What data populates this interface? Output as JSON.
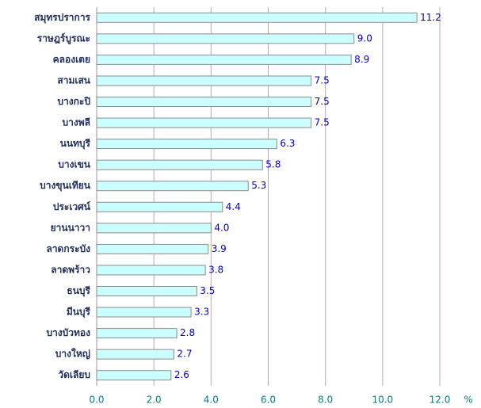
{
  "chart_data": {
    "type": "bar",
    "orientation": "horizontal",
    "categories": [
      "สมุทรปราการ",
      "ราษฎร์บูรณะ",
      "คลองเตย",
      "สามเสน",
      "บางกะปิ",
      "บางพลี",
      "นนทบุรี",
      "บางเขน",
      "บางขุนเทียน",
      "ประเวศน์",
      "ยานนาวา",
      "ลาดกระบัง",
      "ลาดพร้าว",
      "ธนบุรี",
      "มีนบุรี",
      "บางบัวทอง",
      "บางใหญ่",
      "วัดเลียบ"
    ],
    "values": [
      11.2,
      9.0,
      8.9,
      7.5,
      7.5,
      7.5,
      6.3,
      5.8,
      5.3,
      4.4,
      4.0,
      3.9,
      3.8,
      3.5,
      3.3,
      2.8,
      2.7,
      2.6
    ],
    "value_labels": [
      "11.2",
      "9.0",
      "8.9",
      "7.5",
      "7.5",
      "7.5",
      "6.3",
      "5.8",
      "5.3",
      "4.4",
      "4.0",
      "3.9",
      "3.8",
      "3.5",
      "3.3",
      "2.8",
      "2.7",
      "2.6"
    ],
    "color": "#ccffff",
    "xlabel": "%",
    "xlim": [
      0,
      12
    ],
    "xticks": [
      {
        "value": 0,
        "label": "0.0"
      },
      {
        "value": 2,
        "label": "2.0"
      },
      {
        "value": 4,
        "label": "4.0"
      },
      {
        "value": 6,
        "label": "6.0"
      },
      {
        "value": 8,
        "label": "8.0"
      },
      {
        "value": 10,
        "label": "10.0"
      },
      {
        "value": 12,
        "label": "12.0"
      }
    ],
    "grid": true
  }
}
